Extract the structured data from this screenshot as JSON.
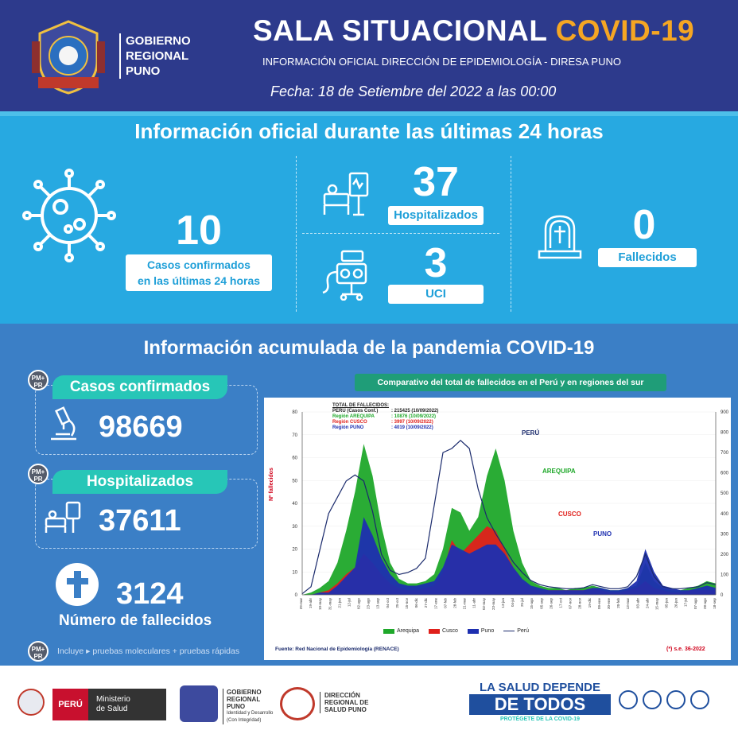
{
  "header": {
    "gov_name_line1": "GOBIERNO",
    "gov_name_line2": "REGIONAL",
    "gov_name_line3": "PUNO",
    "title_main": "SALA SITUACIONAL ",
    "title_accent": "COVID-19",
    "subtitle": "INFORMACIÓN OFICIAL DIRECCIÓN DE EPIDEMIOLOGÍA - DIRESA PUNO",
    "date": "Fecha: 18 de Setiembre del 2022 a las 00:00"
  },
  "last24": {
    "title": "Información oficial durante las últimas 24 horas",
    "confirmed_value": "10",
    "confirmed_label_1": "Casos confirmados",
    "confirmed_label_2": "en las últimas 24 horas",
    "hospitalized_value": "37",
    "hospitalized_label": "Hospitalizados",
    "icu_value": "3",
    "icu_label": "UCI",
    "deaths_value": "0",
    "deaths_label": "Fallecidos"
  },
  "accumulated": {
    "title": "Información acumulada de la pandemia COVID-19",
    "badge_line1": "PM+",
    "badge_line2": "PR",
    "confirmed_label": "Casos confirmados",
    "confirmed_value": "98669",
    "hospitalized_label": "Hospitalizados",
    "hospitalized_value": "37611",
    "deaths_value": "3124",
    "deaths_label": "Número de fallecidos",
    "footnote": "Incluye ▸ pruebas moleculares + pruebas rápidas"
  },
  "chart_data": {
    "type": "area",
    "title": "Comparativo del total de fallecidos en el Perú y en regiones del sur",
    "ylabel": "Nº fallecidos",
    "ylim_left": [
      0,
      80
    ],
    "ylim_right": [
      0,
      900
    ],
    "left_ticks": [
      "80",
      "70",
      "60",
      "50",
      "40",
      "30",
      "20",
      "10",
      "0"
    ],
    "right_ticks": [
      "900",
      "800",
      "700",
      "600",
      "500",
      "400",
      "300",
      "200",
      "100",
      "0"
    ],
    "totals_title": "TOTAL DE FALLECIDOS:",
    "totals": [
      {
        "label": "PERÚ (Casos Conf.)",
        "value": "215425 (10/09/2022)"
      },
      {
        "label": "Región AREQUIPA",
        "value": "10876 (10/09/2022)"
      },
      {
        "label": "Región CUSCO",
        "value": "3997 (10/09/2022)"
      },
      {
        "label": "Región PUNO",
        "value": "4019 (10/09/2022)"
      }
    ],
    "annotations": [
      "PERÚ",
      "AREQUIPA",
      "CUSCO",
      "PUNO"
    ],
    "legend": [
      "Arequipa",
      "Cusco",
      "Puno",
      "Perú"
    ],
    "colors": {
      "Arequipa": "#1fa82a",
      "Cusco": "#e0201b",
      "Puno": "#1d2fb0",
      "Perú": "#1a2a6c"
    },
    "series": [
      {
        "name": "Arequipa",
        "values": [
          0,
          1,
          3,
          6,
          14,
          28,
          45,
          66,
          52,
          30,
          14,
          7,
          5,
          5,
          6,
          9,
          20,
          38,
          36,
          28,
          34,
          52,
          64,
          50,
          28,
          14,
          6,
          4,
          3,
          3,
          2,
          3,
          3,
          4,
          3,
          2,
          2,
          3,
          4,
          14,
          6,
          3,
          2,
          2,
          3,
          4,
          6,
          5
        ]
      },
      {
        "name": "Cusco",
        "values": [
          0,
          0,
          1,
          2,
          5,
          9,
          12,
          18,
          14,
          9,
          5,
          3,
          2,
          2,
          3,
          4,
          10,
          24,
          18,
          22,
          26,
          30,
          28,
          20,
          12,
          6,
          3,
          2,
          2,
          2,
          2,
          2,
          2,
          3,
          2,
          1,
          1,
          2,
          3,
          6,
          3,
          2,
          1,
          1,
          2,
          2,
          2,
          2
        ]
      },
      {
        "name": "Puno",
        "values": [
          0,
          0,
          1,
          1,
          4,
          8,
          12,
          34,
          26,
          16,
          9,
          5,
          4,
          4,
          5,
          6,
          12,
          22,
          20,
          18,
          20,
          22,
          22,
          18,
          12,
          7,
          4,
          3,
          2,
          2,
          2,
          2,
          2,
          3,
          3,
          2,
          2,
          3,
          6,
          20,
          10,
          4,
          3,
          2,
          2,
          3,
          4,
          3
        ]
      },
      {
        "name": "Perú",
        "values": [
          5,
          40,
          220,
          400,
          480,
          560,
          590,
          560,
          410,
          200,
          120,
          100,
          110,
          130,
          180,
          440,
          700,
          720,
          760,
          720,
          520,
          380,
          300,
          230,
          160,
          110,
          70,
          50,
          40,
          35,
          30,
          30,
          35,
          50,
          40,
          30,
          30,
          40,
          90,
          200,
          90,
          40,
          30,
          30,
          35,
          40,
          60,
          50
        ]
      }
    ],
    "x_ticks": [
      "29-mar",
      "19-abr",
      "10-may",
      "31-may",
      "21-jun",
      "12-jul",
      "02-ago",
      "23-ago",
      "13-sep",
      "04-oct",
      "25-oct",
      "15-nov",
      "06-dic",
      "27-dic",
      "17-ene",
      "07-feb",
      "28-feb",
      "21-mar",
      "11-abr",
      "02-may",
      "23-may",
      "13-jun",
      "04-jul",
      "25-jul",
      "15-ago",
      "05-sep",
      "26-sep",
      "17-oct",
      "07-nov",
      "28-nov",
      "19-dic",
      "09-ene",
      "30-ene",
      "20-feb",
      "13-mar",
      "03-abr",
      "24-abr",
      "15-may",
      "05-jun",
      "26-jun",
      "17-jul",
      "07-ago",
      "28-ago",
      "18-sep"
    ],
    "source": "Fuente: Red Nacional de Epidemiología (RENACE)",
    "note": "(*) s.e. 36-2022"
  },
  "footer": {
    "peru": "PERÚ",
    "minsa_1": "Ministerio",
    "minsa_2": "de Salud",
    "gob_1": "GOBIERNO",
    "gob_2": "REGIONAL",
    "gob_3": "PUNO",
    "gob_4": "Identidad y Desarrollo",
    "gob_5": "(Con Integridad)",
    "diresa_1": "DIRECCIÓN",
    "diresa_2": "REGIONAL DE",
    "diresa_3": "SALUD PUNO",
    "campaign_1": "LA SALUD DEPENDE",
    "campaign_2": "DE TODOS",
    "campaign_3": "PROTÉGETE DE LA COVID-19"
  }
}
